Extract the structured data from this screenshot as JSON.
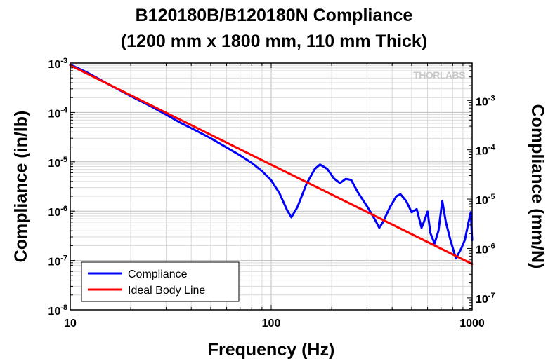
{
  "chart_data": {
    "type": "line",
    "title": "B120180B/B120180N Compliance",
    "subtitle": "(1200 mm x 1800 mm, 110 mm Thick)",
    "xlabel": "Frequency (Hz)",
    "ylabel": "Compliance (in/lb)",
    "y2label": "Compliance (mm/N)",
    "xscale": "log",
    "yscale": "log",
    "xlim": [
      10,
      1000
    ],
    "ylim": [
      1e-08,
      0.001
    ],
    "y2lim": [
      5.71e-08,
      0.00571
    ],
    "grid": true,
    "legend_position": "bottom-left",
    "watermark": "THORLABS",
    "x_ticks": [
      {
        "value": 10,
        "label": "10"
      },
      {
        "value": 100,
        "label": "100"
      },
      {
        "value": 1000,
        "label": "1000"
      }
    ],
    "y_ticks": [
      {
        "value": 0.001,
        "base": "10",
        "exp": "-3"
      },
      {
        "value": 0.0001,
        "base": "10",
        "exp": "-4"
      },
      {
        "value": 1e-05,
        "base": "10",
        "exp": "-5"
      },
      {
        "value": 1e-06,
        "base": "10",
        "exp": "-6"
      },
      {
        "value": 1e-07,
        "base": "10",
        "exp": "-7"
      },
      {
        "value": 1e-08,
        "base": "10",
        "exp": "-8"
      }
    ],
    "y2_ticks": [
      {
        "value": 0.001,
        "base": "10",
        "exp": "-3"
      },
      {
        "value": 0.0001,
        "base": "10",
        "exp": "-4"
      },
      {
        "value": 1e-05,
        "base": "10",
        "exp": "-5"
      },
      {
        "value": 1e-06,
        "base": "10",
        "exp": "-6"
      },
      {
        "value": 1e-07,
        "base": "10",
        "exp": "-7"
      }
    ],
    "series": [
      {
        "name": "Compliance",
        "color": "#0000ff",
        "x": [
          10,
          12,
          15,
          20,
          25,
          30,
          35,
          40,
          50,
          60,
          70,
          80,
          90,
          100,
          110,
          120,
          126,
          135,
          150,
          165,
          175,
          190,
          205,
          220,
          235,
          250,
          270,
          300,
          330,
          345,
          360,
          390,
          420,
          440,
          470,
          500,
          530,
          560,
          575,
          600,
          620,
          650,
          680,
          710,
          740,
          780,
          830,
          880,
          920,
          960,
          985,
          1000
        ],
        "y": [
          0.00093,
          0.00066,
          0.0004,
          0.000215,
          0.000135,
          9e-05,
          6.3e-05,
          4.8e-05,
          3e-05,
          1.95e-05,
          1.35e-05,
          9.5e-06,
          6.5e-06,
          4.2e-06,
          2.3e-06,
          1.05e-06,
          7.5e-07,
          1.2e-06,
          3.6e-06,
          7.2e-06,
          8.8e-06,
          7.2e-06,
          4.6e-06,
          3.7e-06,
          4.5e-06,
          4.3e-06,
          2.4e-06,
          1.25e-06,
          6.5e-07,
          4.6e-07,
          6e-07,
          1.2e-06,
          2e-06,
          2.2e-06,
          1.6e-06,
          9.5e-07,
          1.1e-06,
          4.6e-07,
          6e-07,
          9.8e-07,
          3.6e-07,
          2.2e-07,
          4e-07,
          1.6e-06,
          6e-07,
          2.6e-07,
          1.1e-07,
          1.7e-07,
          2.6e-07,
          6e-07,
          9.5e-07,
          2.6e-07
        ]
      },
      {
        "name": "Ideal Body Line",
        "color": "#ff0000",
        "x": [
          10,
          1000
        ],
        "y": [
          0.0009,
          8.5e-08
        ]
      }
    ]
  }
}
